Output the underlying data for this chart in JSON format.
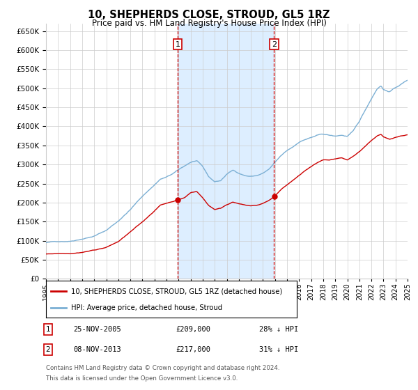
{
  "title": "10, SHEPHERDS CLOSE, STROUD, GL5 1RZ",
  "subtitle": "Price paid vs. HM Land Registry's House Price Index (HPI)",
  "legend_line1": "10, SHEPHERDS CLOSE, STROUD, GL5 1RZ (detached house)",
  "legend_line2": "HPI: Average price, detached house, Stroud",
  "transaction1_date": "25-NOV-2005",
  "transaction1_price": "£209,000",
  "transaction1_pct": "28% ↓ HPI",
  "transaction2_date": "08-NOV-2013",
  "transaction2_price": "£217,000",
  "transaction2_pct": "31% ↓ HPI",
  "footer_line1": "Contains HM Land Registry data © Crown copyright and database right 2024.",
  "footer_line2": "This data is licensed under the Open Government Licence v3.0.",
  "red_color": "#cc0000",
  "blue_color": "#7bafd4",
  "background_color": "#ffffff",
  "grid_color": "#cccccc",
  "shade_color": "#ddeeff",
  "t1_year": 2005.917,
  "t2_year": 2013.917,
  "hpi_anchors": [
    [
      1995.0,
      95000
    ],
    [
      1996.0,
      98000
    ],
    [
      1997.0,
      100000
    ],
    [
      1999.0,
      115000
    ],
    [
      2000.0,
      130000
    ],
    [
      2001.0,
      155000
    ],
    [
      2002.0,
      185000
    ],
    [
      2003.0,
      220000
    ],
    [
      2004.0,
      250000
    ],
    [
      2004.5,
      265000
    ],
    [
      2005.0,
      270000
    ],
    [
      2005.5,
      278000
    ],
    [
      2006.0,
      288000
    ],
    [
      2007.0,
      308000
    ],
    [
      2007.5,
      312000
    ],
    [
      2008.0,
      295000
    ],
    [
      2008.5,
      268000
    ],
    [
      2009.0,
      255000
    ],
    [
      2009.5,
      258000
    ],
    [
      2010.0,
      275000
    ],
    [
      2010.5,
      285000
    ],
    [
      2011.0,
      278000
    ],
    [
      2011.5,
      272000
    ],
    [
      2012.0,
      270000
    ],
    [
      2012.5,
      272000
    ],
    [
      2013.0,
      278000
    ],
    [
      2013.5,
      288000
    ],
    [
      2014.0,
      305000
    ],
    [
      2014.5,
      322000
    ],
    [
      2015.0,
      335000
    ],
    [
      2015.5,
      345000
    ],
    [
      2016.0,
      358000
    ],
    [
      2016.5,
      365000
    ],
    [
      2017.0,
      370000
    ],
    [
      2017.5,
      375000
    ],
    [
      2018.0,
      378000
    ],
    [
      2018.5,
      375000
    ],
    [
      2019.0,
      372000
    ],
    [
      2019.5,
      375000
    ],
    [
      2020.0,
      372000
    ],
    [
      2020.5,
      385000
    ],
    [
      2021.0,
      410000
    ],
    [
      2021.5,
      440000
    ],
    [
      2022.0,
      470000
    ],
    [
      2022.5,
      498000
    ],
    [
      2022.8,
      505000
    ],
    [
      2023.0,
      495000
    ],
    [
      2023.5,
      490000
    ],
    [
      2024.0,
      500000
    ],
    [
      2024.5,
      510000
    ],
    [
      2025.0,
      520000
    ]
  ],
  "red_anchors": [
    [
      1995.0,
      65000
    ],
    [
      1996.0,
      67000
    ],
    [
      1997.0,
      68000
    ],
    [
      1998.0,
      72000
    ],
    [
      1999.0,
      78000
    ],
    [
      2000.0,
      85000
    ],
    [
      2001.0,
      100000
    ],
    [
      2002.0,
      125000
    ],
    [
      2003.0,
      150000
    ],
    [
      2004.0,
      180000
    ],
    [
      2004.5,
      195000
    ],
    [
      2005.0,
      200000
    ],
    [
      2005.917,
      209000
    ],
    [
      2006.5,
      215000
    ],
    [
      2007.0,
      228000
    ],
    [
      2007.5,
      232000
    ],
    [
      2008.0,
      215000
    ],
    [
      2008.5,
      195000
    ],
    [
      2009.0,
      185000
    ],
    [
      2009.5,
      188000
    ],
    [
      2010.0,
      198000
    ],
    [
      2010.5,
      205000
    ],
    [
      2011.0,
      200000
    ],
    [
      2011.5,
      196000
    ],
    [
      2012.0,
      194000
    ],
    [
      2012.5,
      195000
    ],
    [
      2013.0,
      200000
    ],
    [
      2013.5,
      208000
    ],
    [
      2013.917,
      217000
    ],
    [
      2014.0,
      220000
    ],
    [
      2014.5,
      235000
    ],
    [
      2015.0,
      248000
    ],
    [
      2015.5,
      260000
    ],
    [
      2016.0,
      272000
    ],
    [
      2016.5,
      285000
    ],
    [
      2017.0,
      295000
    ],
    [
      2017.5,
      305000
    ],
    [
      2018.0,
      312000
    ],
    [
      2018.5,
      310000
    ],
    [
      2019.0,
      312000
    ],
    [
      2019.5,
      315000
    ],
    [
      2020.0,
      308000
    ],
    [
      2020.5,
      318000
    ],
    [
      2021.0,
      330000
    ],
    [
      2021.5,
      345000
    ],
    [
      2022.0,
      360000
    ],
    [
      2022.5,
      372000
    ],
    [
      2022.8,
      375000
    ],
    [
      2023.0,
      368000
    ],
    [
      2023.5,
      362000
    ],
    [
      2024.0,
      368000
    ],
    [
      2024.5,
      372000
    ],
    [
      2025.0,
      375000
    ]
  ],
  "xlim": [
    1995,
    2025
  ],
  "ylim": [
    0,
    670000
  ],
  "yticks": [
    0,
    50000,
    100000,
    150000,
    200000,
    250000,
    300000,
    350000,
    400000,
    450000,
    500000,
    550000,
    600000,
    650000
  ],
  "xticks": [
    1995,
    1996,
    1997,
    1998,
    1999,
    2000,
    2001,
    2002,
    2003,
    2004,
    2005,
    2006,
    2007,
    2008,
    2009,
    2010,
    2011,
    2012,
    2013,
    2014,
    2015,
    2016,
    2017,
    2018,
    2019,
    2020,
    2021,
    2022,
    2023,
    2024,
    2025
  ]
}
